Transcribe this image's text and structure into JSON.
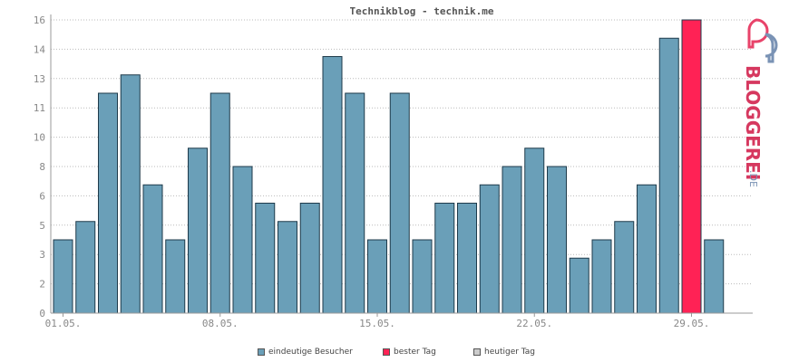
{
  "chart_data": {
    "type": "bar",
    "title": "Technikblog - technik.me",
    "x_tick_labels": [
      "01.05.",
      "08.05.",
      "15.05.",
      "22.05.",
      "29.05."
    ],
    "y_tick_labels": [
      "0",
      "2",
      "3",
      "5",
      "6",
      "8",
      "10",
      "11",
      "13",
      "14",
      "16"
    ],
    "ylim": [
      0,
      16
    ],
    "grid": true,
    "values": [
      4,
      5,
      12,
      13,
      7,
      4,
      9,
      12,
      8,
      6,
      5,
      6,
      14,
      12,
      4,
      12,
      4,
      6,
      6,
      7,
      8,
      9,
      8,
      3,
      4,
      5,
      7,
      15,
      16,
      4
    ],
    "highlight_index": 28,
    "colors": {
      "bar": "#6a9fb8",
      "best": "#ff2255",
      "today": "#cccccc",
      "outline": "#1e3a4a"
    }
  },
  "legend": [
    {
      "label": "eindeutige Besucher",
      "color": "#6a9fb8"
    },
    {
      "label": "bester Tag",
      "color": "#ff2255"
    },
    {
      "label": "heutiger Tag",
      "color": "#cccccc"
    }
  ],
  "logo": {
    "text": "BLOGGEREI",
    "suffix": ".DE"
  }
}
